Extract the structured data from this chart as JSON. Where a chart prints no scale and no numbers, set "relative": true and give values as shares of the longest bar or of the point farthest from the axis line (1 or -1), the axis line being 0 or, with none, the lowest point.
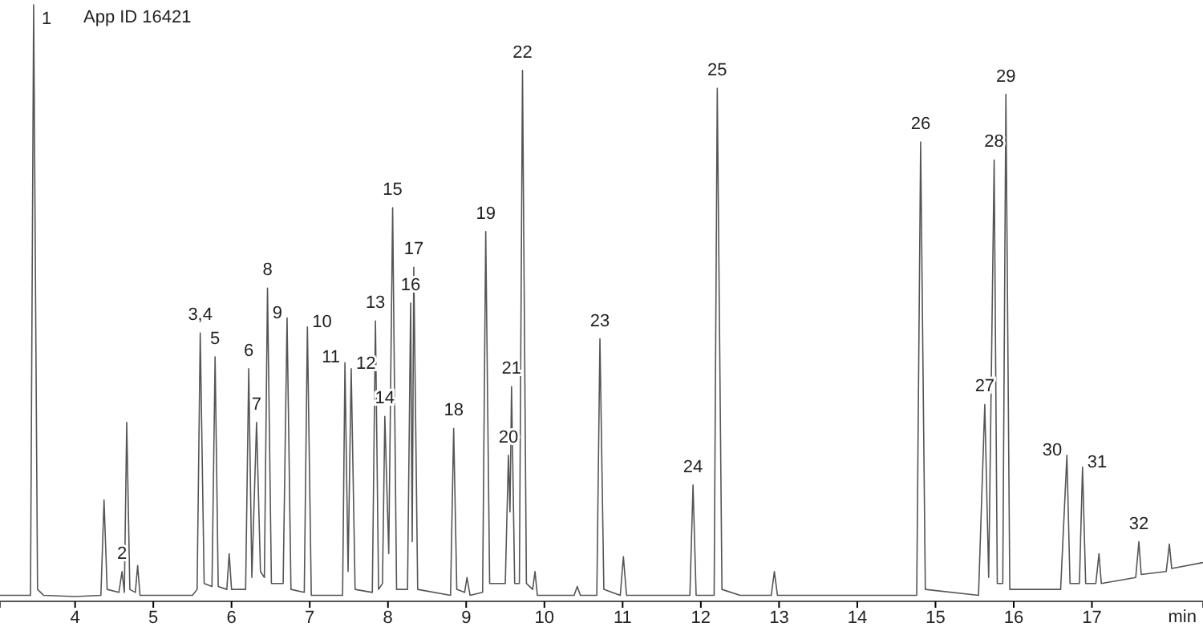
{
  "chart_data": {
    "type": "line",
    "relative": true,
    "xlabel": "min",
    "xlim": [
      3.04,
      18.42
    ],
    "xticks": [
      4,
      5,
      6,
      7,
      8,
      9,
      10,
      11,
      12,
      13,
      14,
      15,
      16,
      17
    ],
    "grid": false,
    "marker": "none",
    "line_style": "solid",
    "series": [
      {
        "color": "#555555",
        "x": [
          3.04,
          3.43,
          3.47,
          3.52,
          3.6,
          4.0,
          4.33,
          4.37,
          4.41,
          4.56,
          4.6,
          4.63,
          4.66,
          4.7,
          4.77,
          4.8,
          4.83,
          5.5,
          5.56,
          5.6,
          5.65,
          5.75,
          5.79,
          5.83,
          5.94,
          5.97,
          6.0,
          6.18,
          6.22,
          6.26,
          6.32,
          6.37,
          6.42,
          6.46,
          6.51,
          6.66,
          6.71,
          6.76,
          6.93,
          6.97,
          7.02,
          7.42,
          7.45,
          7.49,
          7.53,
          7.58,
          7.8,
          7.84,
          7.88,
          7.93,
          7.96,
          8.01,
          8.06,
          8.11,
          8.25,
          8.29,
          8.31,
          8.33,
          8.38,
          8.8,
          8.84,
          8.88,
          8.98,
          9.01,
          9.05,
          9.21,
          9.25,
          9.3,
          9.5,
          9.54,
          9.56,
          9.58,
          9.62,
          9.68,
          9.72,
          9.77,
          9.85,
          9.88,
          9.91,
          10.38,
          10.42,
          10.46,
          10.67,
          10.71,
          10.76,
          10.97,
          11.01,
          11.05,
          11.86,
          11.9,
          11.94,
          12.17,
          12.21,
          12.27,
          12.5,
          12.9,
          12.94,
          12.98,
          14.76,
          14.81,
          14.87,
          15.55,
          15.63,
          15.68,
          15.75,
          15.79,
          15.86,
          15.9,
          15.95,
          16.6,
          16.68,
          16.72,
          16.84,
          16.88,
          16.92,
          17.05,
          17.09,
          17.12,
          17.56,
          17.6,
          17.63,
          17.95,
          17.99,
          18.02,
          18.42
        ],
        "values": [
          0.01,
          0.01,
          1.0,
          0.02,
          0.01,
          0.008,
          0.01,
          0.17,
          0.02,
          0.015,
          0.05,
          0.015,
          0.3,
          0.02,
          0.015,
          0.06,
          0.01,
          0.01,
          0.02,
          0.45,
          0.03,
          0.025,
          0.41,
          0.025,
          0.02,
          0.08,
          0.02,
          0.02,
          0.39,
          0.04,
          0.3,
          0.05,
          0.04,
          0.525,
          0.03,
          0.03,
          0.475,
          0.02,
          0.015,
          0.46,
          0.01,
          0.01,
          0.4,
          0.05,
          0.39,
          0.02,
          0.015,
          0.47,
          0.02,
          0.03,
          0.31,
          0.08,
          0.66,
          0.02,
          0.02,
          0.5,
          0.1,
          0.56,
          0.02,
          0.01,
          0.29,
          0.02,
          0.015,
          0.04,
          0.01,
          0.015,
          0.62,
          0.03,
          0.03,
          0.245,
          0.15,
          0.36,
          0.03,
          0.03,
          0.89,
          0.03,
          0.02,
          0.05,
          0.01,
          0.01,
          0.025,
          0.01,
          0.01,
          0.44,
          0.02,
          0.01,
          0.075,
          0.01,
          0.01,
          0.195,
          0.01,
          0.01,
          0.86,
          0.02,
          0.01,
          0.01,
          0.05,
          0.01,
          0.01,
          0.77,
          0.02,
          0.01,
          0.33,
          0.04,
          0.74,
          0.03,
          0.03,
          0.85,
          0.02,
          0.02,
          0.245,
          0.03,
          0.03,
          0.225,
          0.03,
          0.03,
          0.08,
          0.03,
          0.04,
          0.1,
          0.045,
          0.05,
          0.096,
          0.055,
          0.065
        ]
      }
    ],
    "annotations": [
      "App ID 16421",
      {
        "text": "1",
        "x": 3.47,
        "y": 1.0
      },
      {
        "text": "2",
        "x": 4.6,
        "y": 0.05
      },
      {
        "text": "3,4",
        "x": 5.6,
        "y": 0.45
      },
      {
        "text": "5",
        "x": 5.79,
        "y": 0.41
      },
      {
        "text": "6",
        "x": 6.22,
        "y": 0.39
      },
      {
        "text": "7",
        "x": 6.32,
        "y": 0.3
      },
      {
        "text": "8",
        "x": 6.46,
        "y": 0.525
      },
      {
        "text": "9",
        "x": 6.71,
        "y": 0.475
      },
      {
        "text": "10",
        "x": 6.97,
        "y": 0.46
      },
      {
        "text": "11",
        "x": 7.45,
        "y": 0.4
      },
      {
        "text": "12",
        "x": 7.53,
        "y": 0.39
      },
      {
        "text": "13",
        "x": 7.84,
        "y": 0.47
      },
      {
        "text": "14",
        "x": 7.96,
        "y": 0.31
      },
      {
        "text": "15",
        "x": 8.06,
        "y": 0.66
      },
      {
        "text": "16",
        "x": 8.29,
        "y": 0.5
      },
      {
        "text": "17",
        "x": 8.33,
        "y": 0.56
      },
      {
        "text": "18",
        "x": 8.84,
        "y": 0.29
      },
      {
        "text": "19",
        "x": 9.25,
        "y": 0.62
      },
      {
        "text": "20",
        "x": 9.54,
        "y": 0.245
      },
      {
        "text": "21",
        "x": 9.58,
        "y": 0.36
      },
      {
        "text": "22",
        "x": 9.72,
        "y": 0.89
      },
      {
        "text": "23",
        "x": 10.71,
        "y": 0.44
      },
      {
        "text": "24",
        "x": 11.9,
        "y": 0.195
      },
      {
        "text": "25",
        "x": 12.21,
        "y": 0.86
      },
      {
        "text": "26",
        "x": 14.81,
        "y": 0.77
      },
      {
        "text": "27",
        "x": 15.63,
        "y": 0.33
      },
      {
        "text": "28",
        "x": 15.75,
        "y": 0.74
      },
      {
        "text": "29",
        "x": 15.9,
        "y": 0.85
      },
      {
        "text": "30",
        "x": 16.68,
        "y": 0.245
      },
      {
        "text": "31",
        "x": 16.88,
        "y": 0.225
      },
      {
        "text": "32",
        "x": 17.6,
        "y": 0.1
      }
    ]
  }
}
